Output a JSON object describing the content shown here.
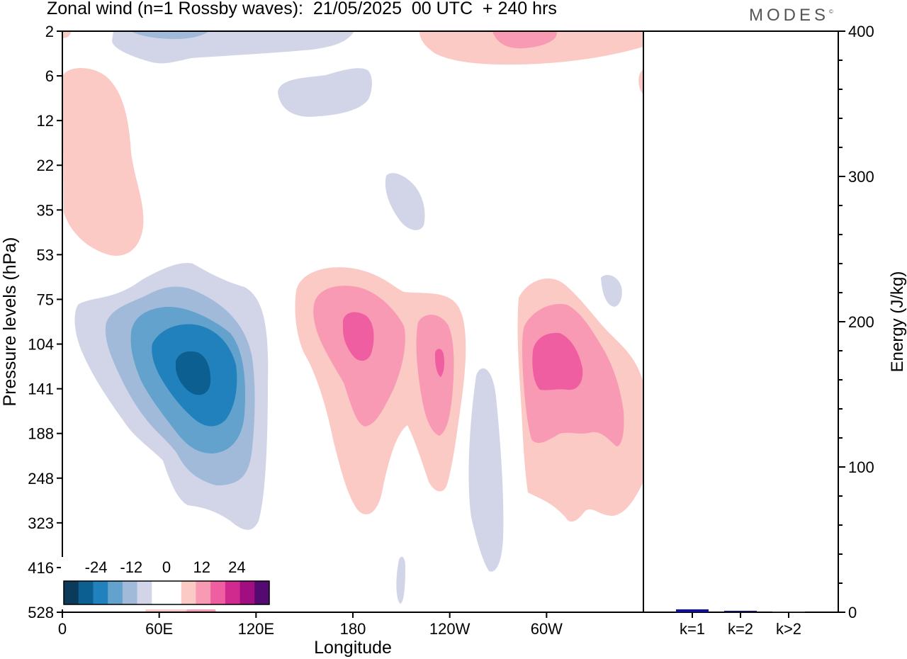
{
  "header": {
    "title": "Zonal wind (n=1 Rossby waves):  21/05/2025  00 UTC  + 240 hrs",
    "brand": "MODES",
    "brand_mark": "©"
  },
  "chart_data": [
    {
      "type": "heatmap",
      "title": "Zonal wind (n=1 Rossby waves):  21/05/2025  00 UTC  + 240 hrs",
      "xlabel": "Longitude",
      "ylabel": "Pressure levels (hPa)",
      "x_ticks": [
        "0",
        "60E",
        "120E",
        "180",
        "120W",
        "60W"
      ],
      "x_tick_values": [
        0,
        60,
        120,
        180,
        240,
        300
      ],
      "xlim": [
        0,
        360
      ],
      "y_ticks": [
        "2",
        "6",
        "12",
        "22",
        "35",
        "53",
        "75",
        "104",
        "141",
        "188",
        "248",
        "323",
        "416",
        "528"
      ],
      "y_axis_reversed": true,
      "colorbar": {
        "tick_labels": [
          "-24",
          "-12",
          "0",
          "12",
          "24"
        ],
        "tick_values": [
          -24,
          -12,
          0,
          12,
          24
        ],
        "levels": [
          -30,
          -25,
          -20,
          -15,
          -10,
          -5,
          0,
          5,
          10,
          15,
          20,
          25,
          30
        ],
        "colors": [
          "#0c3a5b",
          "#0b5f91",
          "#2181bd",
          "#62a2cd",
          "#a1bad9",
          "#d1d5e7",
          "#ffffff",
          "#ffffff",
          "#fbcac5",
          "#f99ab4",
          "#ef5ea0",
          "#d02a8e",
          "#a10e81",
          "#540a70"
        ],
        "placement": "bottom-left"
      },
      "features": [
        {
          "sign": "negative",
          "peak": -22,
          "lon": 80,
          "level": "141"
        },
        {
          "sign": "positive",
          "peak": 14,
          "lon": 184,
          "level": "104"
        },
        {
          "sign": "positive",
          "peak": 14,
          "lon": 234,
          "level": "104"
        },
        {
          "sign": "positive",
          "peak": 14,
          "lon": 300,
          "level": "104"
        },
        {
          "sign": "negative",
          "peak": -3,
          "lon": 262,
          "level": "248"
        },
        {
          "sign": "positive",
          "peak": 4,
          "lon": 25,
          "level": "22"
        },
        {
          "sign": "negative",
          "peak": -4,
          "lon": 60,
          "level": "2"
        },
        {
          "sign": "positive",
          "peak": 6,
          "lon": 280,
          "level": "2"
        },
        {
          "sign": "negative",
          "peak": -2,
          "lon": 170,
          "level": "6"
        },
        {
          "sign": "negative",
          "peak": -2,
          "lon": 210,
          "level": "22"
        }
      ],
      "grid": false
    },
    {
      "type": "bar",
      "categories": [
        "k=1",
        "k=2",
        "k>2"
      ],
      "values": [
        2,
        1,
        0.5
      ],
      "ylabel": "Energy (J/kg)",
      "y_ticks": [
        "0",
        "100",
        "200",
        "300",
        "400"
      ],
      "ylim": [
        0,
        400
      ],
      "colors": [
        "#13108f",
        "#14124a",
        "#333333"
      ],
      "y_axis_position": "right"
    }
  ]
}
